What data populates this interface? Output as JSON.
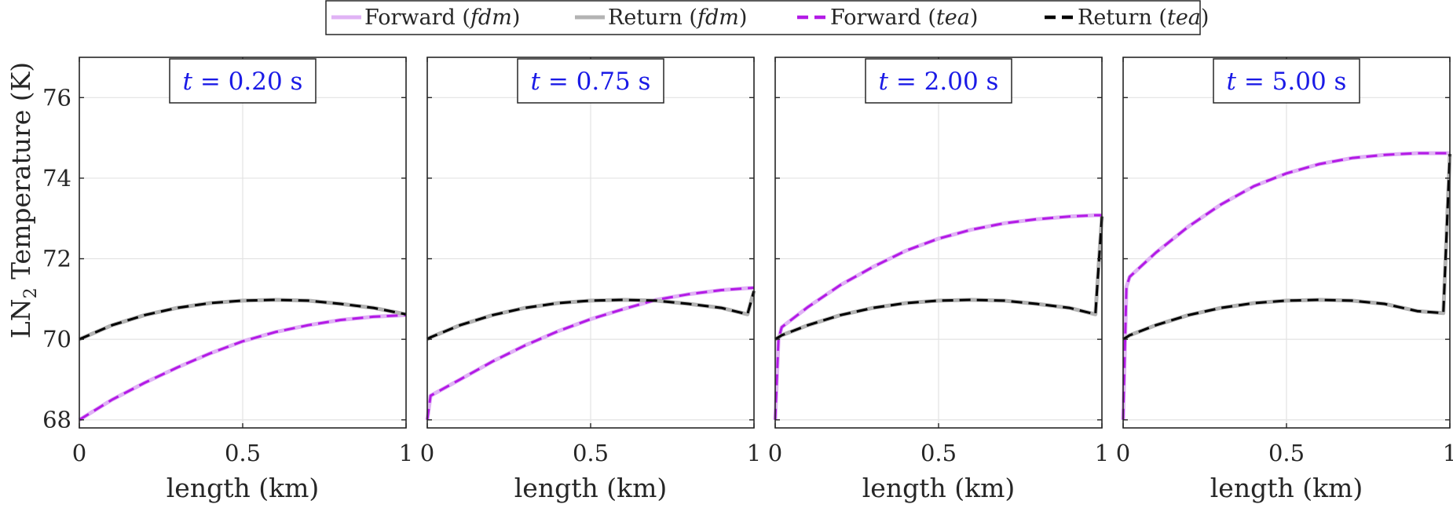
{
  "figure": {
    "ylabel_main": "LN",
    "ylabel_sub": "2",
    "ylabel_rest": " Temperature (K)"
  },
  "legend": {
    "entries": [
      {
        "label": "Forward",
        "math": "fdm",
        "color": "#e0b3f5",
        "dash": "solid"
      },
      {
        "label": "Return",
        "math": "fdm",
        "color": "#b3b3b3",
        "dash": "solid"
      },
      {
        "label": "Forward",
        "math": "tea",
        "color": "#b31ae6",
        "dash": "dashed"
      },
      {
        "label": "Return",
        "math": "tea",
        "color": "#000000",
        "dash": "dashed"
      }
    ]
  },
  "chart_data": [
    {
      "type": "line",
      "annotation": "t = 0.20 s",
      "xlabel": "length (km)",
      "ylabel": "LN2 Temperature (K)",
      "xlim": [
        0,
        1
      ],
      "ylim": [
        67.8,
        77
      ],
      "xticks": [
        "0",
        "0.5",
        "1"
      ],
      "yticks": [
        "68",
        "70",
        "72",
        "74",
        "76"
      ],
      "grid": true,
      "x": [
        0,
        0.1,
        0.2,
        0.3,
        0.4,
        0.5,
        0.6,
        0.7,
        0.8,
        0.9,
        1.0
      ],
      "series": [
        {
          "name": "Forward (fdm)",
          "values": [
            68.0,
            68.5,
            68.92,
            69.3,
            69.65,
            69.95,
            70.18,
            70.35,
            70.48,
            70.56,
            70.6
          ]
        },
        {
          "name": "Return (fdm)",
          "values": [
            70.0,
            70.35,
            70.6,
            70.78,
            70.9,
            70.96,
            70.98,
            70.96,
            70.88,
            70.78,
            70.62
          ]
        },
        {
          "name": "Forward (tea)",
          "values": [
            68.0,
            68.5,
            68.92,
            69.3,
            69.65,
            69.95,
            70.18,
            70.35,
            70.48,
            70.56,
            70.6
          ]
        },
        {
          "name": "Return (tea)",
          "values": [
            70.0,
            70.35,
            70.6,
            70.78,
            70.9,
            70.96,
            70.98,
            70.96,
            70.88,
            70.78,
            70.62
          ]
        }
      ]
    },
    {
      "type": "line",
      "annotation": "t = 0.75 s",
      "xlabel": "length (km)",
      "xlim": [
        0,
        1
      ],
      "ylim": [
        67.8,
        77
      ],
      "xticks": [
        "0",
        "0.5",
        "1"
      ],
      "grid": true,
      "x": [
        0,
        0.01,
        0.1,
        0.2,
        0.3,
        0.4,
        0.5,
        0.6,
        0.7,
        0.8,
        0.9,
        0.98,
        1.0
      ],
      "series": [
        {
          "name": "Forward (fdm)",
          "values": [
            68.0,
            68.6,
            69.0,
            69.45,
            69.85,
            70.2,
            70.5,
            70.75,
            70.98,
            71.12,
            71.22,
            71.27,
            71.28
          ]
        },
        {
          "name": "Return (fdm)",
          "values": [
            70.0,
            70.05,
            70.35,
            70.6,
            70.78,
            70.9,
            70.96,
            70.98,
            70.96,
            70.88,
            70.78,
            70.62,
            71.2
          ]
        },
        {
          "name": "Forward (tea)",
          "values": [
            68.0,
            68.6,
            69.0,
            69.45,
            69.85,
            70.2,
            70.5,
            70.75,
            70.98,
            71.12,
            71.22,
            71.27,
            71.28
          ]
        },
        {
          "name": "Return (tea)",
          "values": [
            70.0,
            70.05,
            70.35,
            70.6,
            70.78,
            70.9,
            70.96,
            70.98,
            70.96,
            70.88,
            70.78,
            70.62,
            71.2
          ]
        }
      ]
    },
    {
      "type": "line",
      "annotation": "t = 2.00 s",
      "xlabel": "length (km)",
      "xlim": [
        0,
        1
      ],
      "ylim": [
        67.8,
        77
      ],
      "xticks": [
        "0",
        "0.5",
        "1"
      ],
      "grid": true,
      "x": [
        0,
        0.01,
        0.02,
        0.1,
        0.2,
        0.3,
        0.4,
        0.5,
        0.6,
        0.7,
        0.8,
        0.9,
        0.98,
        1.0
      ],
      "series": [
        {
          "name": "Forward (fdm)",
          "values": [
            68.0,
            70.0,
            70.3,
            70.8,
            71.35,
            71.8,
            72.2,
            72.5,
            72.72,
            72.88,
            72.98,
            73.05,
            73.08,
            73.08
          ]
        },
        {
          "name": "Return (fdm)",
          "values": [
            70.0,
            70.05,
            70.1,
            70.35,
            70.6,
            70.78,
            70.9,
            70.96,
            70.98,
            70.96,
            70.88,
            70.78,
            70.62,
            73.05
          ]
        },
        {
          "name": "Forward (tea)",
          "values": [
            68.0,
            70.0,
            70.3,
            70.8,
            71.35,
            71.8,
            72.2,
            72.5,
            72.72,
            72.88,
            72.98,
            73.05,
            73.08,
            73.08
          ]
        },
        {
          "name": "Return (tea)",
          "values": [
            70.0,
            70.05,
            70.1,
            70.35,
            70.6,
            70.78,
            70.9,
            70.96,
            70.98,
            70.96,
            70.88,
            70.78,
            70.62,
            73.05
          ]
        }
      ]
    },
    {
      "type": "line",
      "annotation": "t = 5.00 s",
      "xlabel": "length (km)",
      "xlim": [
        0,
        1
      ],
      "ylim": [
        67.8,
        77
      ],
      "xticks": [
        "0",
        "0.5",
        "1"
      ],
      "grid": true,
      "x": [
        0,
        0.01,
        0.02,
        0.1,
        0.2,
        0.3,
        0.4,
        0.5,
        0.6,
        0.7,
        0.8,
        0.9,
        0.98,
        1.0
      ],
      "series": [
        {
          "name": "Forward (fdm)",
          "values": [
            68.0,
            71.3,
            71.55,
            72.15,
            72.8,
            73.35,
            73.8,
            74.12,
            74.35,
            74.5,
            74.58,
            74.62,
            74.62,
            74.62
          ]
        },
        {
          "name": "Return (fdm)",
          "values": [
            70.0,
            70.05,
            70.1,
            70.35,
            70.6,
            70.78,
            70.9,
            70.96,
            70.98,
            70.96,
            70.88,
            70.7,
            70.65,
            74.6
          ]
        },
        {
          "name": "Forward (tea)",
          "values": [
            68.0,
            71.3,
            71.55,
            72.15,
            72.8,
            73.35,
            73.8,
            74.12,
            74.35,
            74.5,
            74.58,
            74.62,
            74.62,
            74.62
          ]
        },
        {
          "name": "Return (tea)",
          "values": [
            70.0,
            70.05,
            70.1,
            70.35,
            70.6,
            70.78,
            70.9,
            70.96,
            70.98,
            70.96,
            70.88,
            70.7,
            70.65,
            74.6
          ]
        }
      ]
    }
  ]
}
